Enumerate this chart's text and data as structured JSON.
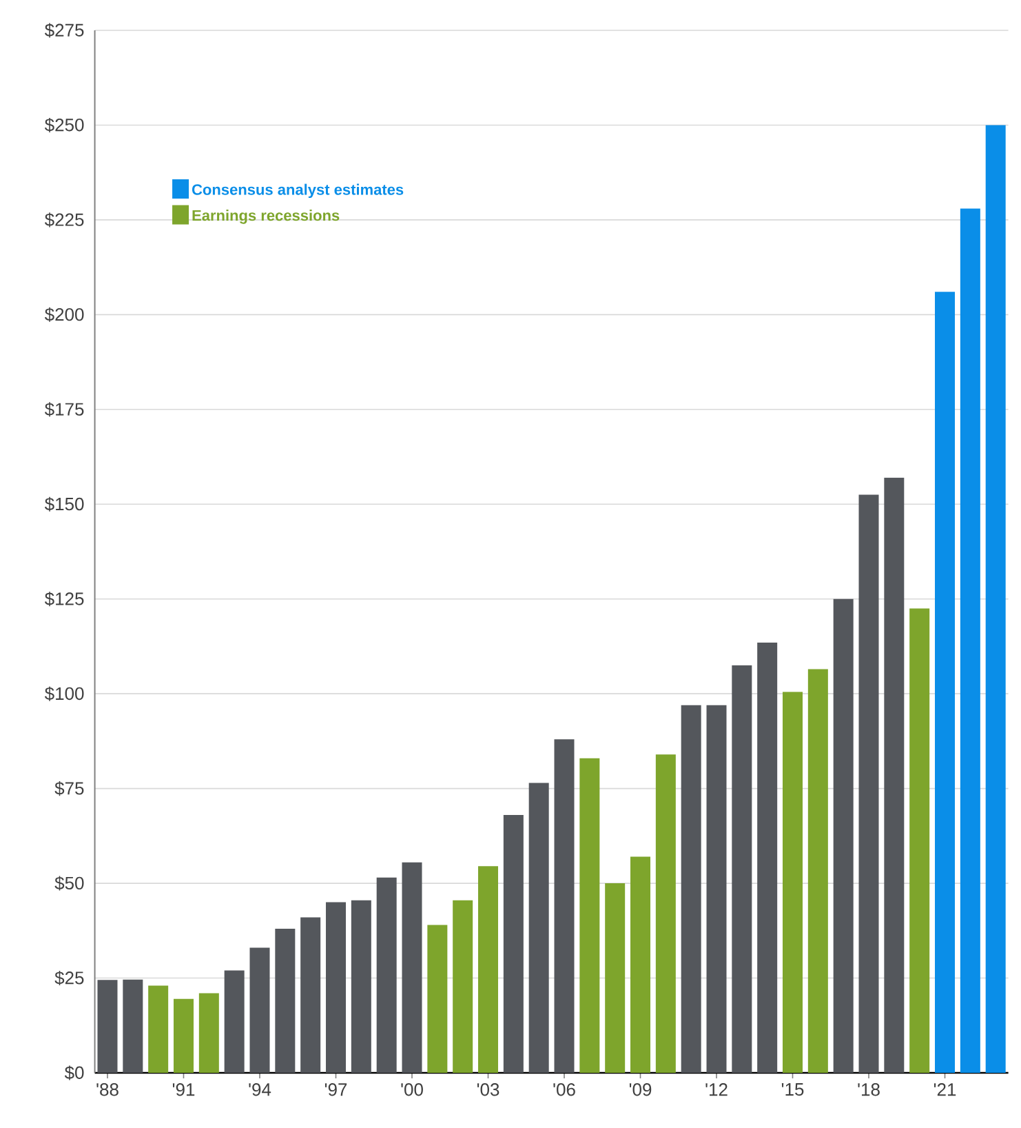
{
  "chart_data": {
    "type": "bar",
    "categories": [
      "'88",
      null,
      null,
      "'91",
      null,
      null,
      "'94",
      null,
      null,
      "'97",
      null,
      null,
      "'00",
      null,
      null,
      "'03",
      null,
      null,
      "'06",
      null,
      null,
      "'09",
      null,
      null,
      "'12",
      null,
      null,
      "'15",
      null,
      null,
      "'18",
      null,
      null,
      "'21",
      null,
      null
    ],
    "series": [
      {
        "color": "#54575c",
        "values": [
          24.5,
          24.6,
          null,
          null,
          null,
          27,
          33,
          38,
          41,
          45,
          45.5,
          51.5,
          55.5,
          null,
          null,
          null,
          68,
          76.5,
          88,
          null,
          null,
          null,
          null,
          97,
          97,
          107.5,
          113.5,
          null,
          null,
          125,
          152.5,
          157,
          null,
          null,
          null,
          null
        ]
      },
      {
        "name": "Consensus analyst estimates",
        "color": "#0a8ee8",
        "values": [
          null,
          null,
          null,
          null,
          null,
          null,
          null,
          null,
          null,
          null,
          null,
          null,
          null,
          null,
          null,
          null,
          null,
          null,
          null,
          null,
          null,
          null,
          null,
          null,
          null,
          null,
          null,
          null,
          null,
          null,
          null,
          null,
          null,
          206,
          228,
          250
        ]
      },
      {
        "name": "Earnings recessions",
        "color": "#7ea52c",
        "values": [
          null,
          null,
          23,
          19.5,
          21,
          null,
          null,
          null,
          null,
          null,
          null,
          null,
          null,
          39,
          45.5,
          54.5,
          null,
          null,
          null,
          83,
          50,
          57,
          84,
          null,
          null,
          null,
          null,
          100.5,
          106.5,
          null,
          null,
          null,
          122.5,
          null,
          null,
          null
        ]
      }
    ],
    "ylim": [
      0,
      275
    ],
    "yticks": [
      {
        "value": 0,
        "label": "$0"
      },
      {
        "value": 25,
        "label": "$25"
      },
      {
        "value": 50,
        "label": "$50"
      },
      {
        "value": 75,
        "label": "$75"
      },
      {
        "value": 100,
        "label": "$100"
      },
      {
        "value": 125,
        "label": "$125"
      },
      {
        "value": 150,
        "label": "$150"
      },
      {
        "value": 175,
        "label": "$175"
      },
      {
        "value": 200,
        "label": "$200"
      },
      {
        "value": 225,
        "label": "$225"
      },
      {
        "value": 250,
        "label": "$250"
      },
      {
        "value": 275,
        "label": "$275"
      }
    ],
    "grid": "y",
    "legend": "top left"
  }
}
